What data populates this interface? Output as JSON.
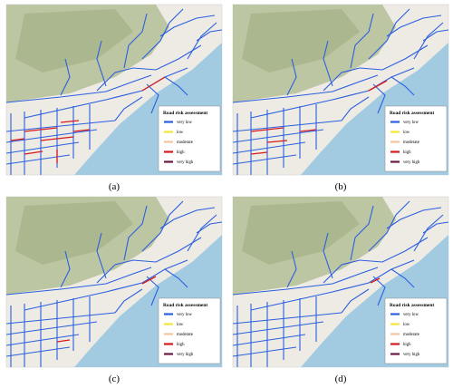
{
  "panels": [
    {
      "caption": "(a)",
      "legend": {
        "title": "Road risk assessment",
        "items": [
          {
            "label": "very low",
            "color": "#2b5fe0"
          },
          {
            "label": "low",
            "color": "#f2e634"
          },
          {
            "label": "moderate",
            "color": "#f4c49c"
          },
          {
            "label": "high",
            "color": "#d7191c"
          },
          {
            "label": "very high",
            "color": "#6a1846"
          }
        ]
      }
    },
    {
      "caption": "(b)",
      "legend": {
        "title": "Road risk assessment",
        "items": [
          {
            "label": "very low",
            "color": "#2b5fe0"
          },
          {
            "label": "low",
            "color": "#f2e634"
          },
          {
            "label": "moderate",
            "color": "#f4c49c"
          },
          {
            "label": "high",
            "color": "#d7191c"
          },
          {
            "label": "very high",
            "color": "#6a1846"
          }
        ]
      }
    },
    {
      "caption": "(c)",
      "legend": {
        "title": "Road risk assessment",
        "items": [
          {
            "label": "very low",
            "color": "#2b5fe0"
          },
          {
            "label": "low",
            "color": "#f2e634"
          },
          {
            "label": "moderate",
            "color": "#f4c49c"
          },
          {
            "label": "high",
            "color": "#d7191c"
          },
          {
            "label": "very high",
            "color": "#6a1846"
          }
        ]
      }
    },
    {
      "caption": "(d)",
      "legend": {
        "title": "Road risk assessment",
        "items": [
          {
            "label": "very low",
            "color": "#2b5fe0"
          },
          {
            "label": "low",
            "color": "#f2e634"
          },
          {
            "label": "moderate",
            "color": "#f4c49c"
          },
          {
            "label": "high",
            "color": "#d7191c"
          },
          {
            "label": "very high",
            "color": "#6a1846"
          }
        ]
      }
    }
  ]
}
